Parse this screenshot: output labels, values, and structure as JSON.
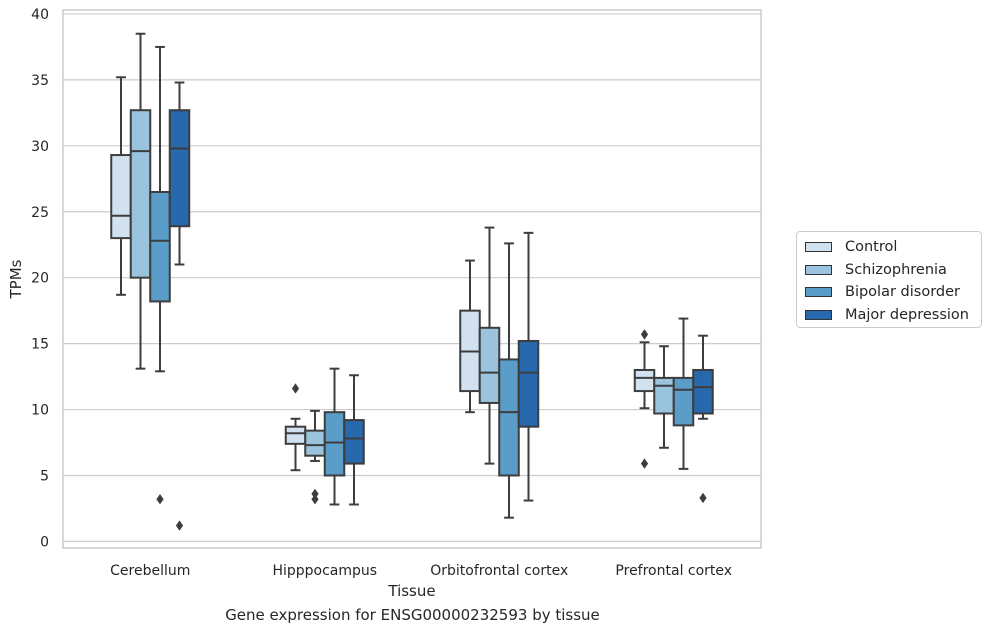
{
  "caption": "Gene expression for ENSG00000232593 by tissue",
  "chart_data": {
    "type": "box",
    "xlabel": "Tissue",
    "ylabel": "TPMs",
    "ylim": [
      -0.5,
      40.3
    ],
    "yticks": [
      0,
      5,
      10,
      15,
      20,
      25,
      30,
      35,
      40
    ],
    "grid": "horizontal",
    "legend_position": "right",
    "categories": [
      "Cerebellum",
      "Hipppocampus",
      "Orbitofrontal cortex",
      "Prefrontal cortex"
    ],
    "series": [
      {
        "name": "Control",
        "color": "#d1e1f0",
        "boxes": [
          {
            "whisker_low": 18.7,
            "q1": 23.0,
            "median": 24.7,
            "q3": 29.3,
            "whisker_high": 35.2,
            "outliers": []
          },
          {
            "whisker_low": 5.4,
            "q1": 7.4,
            "median": 8.2,
            "q3": 8.7,
            "whisker_high": 9.3,
            "outliers": [
              11.6
            ]
          },
          {
            "whisker_low": 9.8,
            "q1": 11.4,
            "median": 14.4,
            "q3": 17.5,
            "whisker_high": 21.3,
            "outliers": []
          },
          {
            "whisker_low": 10.1,
            "q1": 11.4,
            "median": 12.4,
            "q3": 13.0,
            "whisker_high": 15.1,
            "outliers": [
              15.7,
              5.9
            ]
          }
        ]
      },
      {
        "name": "Schizophrenia",
        "color": "#9ac3dd",
        "boxes": [
          {
            "whisker_low": 13.1,
            "q1": 20.0,
            "median": 29.6,
            "q3": 32.7,
            "whisker_high": 38.5,
            "outliers": []
          },
          {
            "whisker_low": 6.1,
            "q1": 6.5,
            "median": 7.3,
            "q3": 8.4,
            "whisker_high": 9.9,
            "outliers": [
              3.6,
              3.2
            ]
          },
          {
            "whisker_low": 5.9,
            "q1": 10.5,
            "median": 12.8,
            "q3": 16.2,
            "whisker_high": 23.8,
            "outliers": []
          },
          {
            "whisker_low": 7.1,
            "q1": 9.7,
            "median": 11.8,
            "q3": 12.4,
            "whisker_high": 14.8,
            "outliers": []
          }
        ]
      },
      {
        "name": "Bipolar disorder",
        "color": "#5a9dc8",
        "boxes": [
          {
            "whisker_low": 12.9,
            "q1": 18.2,
            "median": 22.8,
            "q3": 26.5,
            "whisker_high": 37.5,
            "outliers": [
              3.2
            ]
          },
          {
            "whisker_low": 2.8,
            "q1": 5.0,
            "median": 7.5,
            "q3": 9.8,
            "whisker_high": 13.1,
            "outliers": []
          },
          {
            "whisker_low": 1.8,
            "q1": 5.0,
            "median": 9.8,
            "q3": 13.8,
            "whisker_high": 22.6,
            "outliers": []
          },
          {
            "whisker_low": 5.5,
            "q1": 8.8,
            "median": 11.5,
            "q3": 12.4,
            "whisker_high": 16.9,
            "outliers": []
          }
        ]
      },
      {
        "name": "Major depression",
        "color": "#2868ac",
        "boxes": [
          {
            "whisker_low": 21.0,
            "q1": 23.9,
            "median": 29.8,
            "q3": 32.7,
            "whisker_high": 34.8,
            "outliers": [
              1.2
            ]
          },
          {
            "whisker_low": 2.8,
            "q1": 5.9,
            "median": 7.8,
            "q3": 9.2,
            "whisker_high": 12.6,
            "outliers": []
          },
          {
            "whisker_low": 3.1,
            "q1": 8.7,
            "median": 12.8,
            "q3": 15.2,
            "whisker_high": 23.4,
            "outliers": []
          },
          {
            "whisker_low": 9.3,
            "q1": 9.7,
            "median": 11.7,
            "q3": 13.0,
            "whisker_high": 15.6,
            "outliers": [
              3.3
            ]
          }
        ]
      }
    ]
  }
}
